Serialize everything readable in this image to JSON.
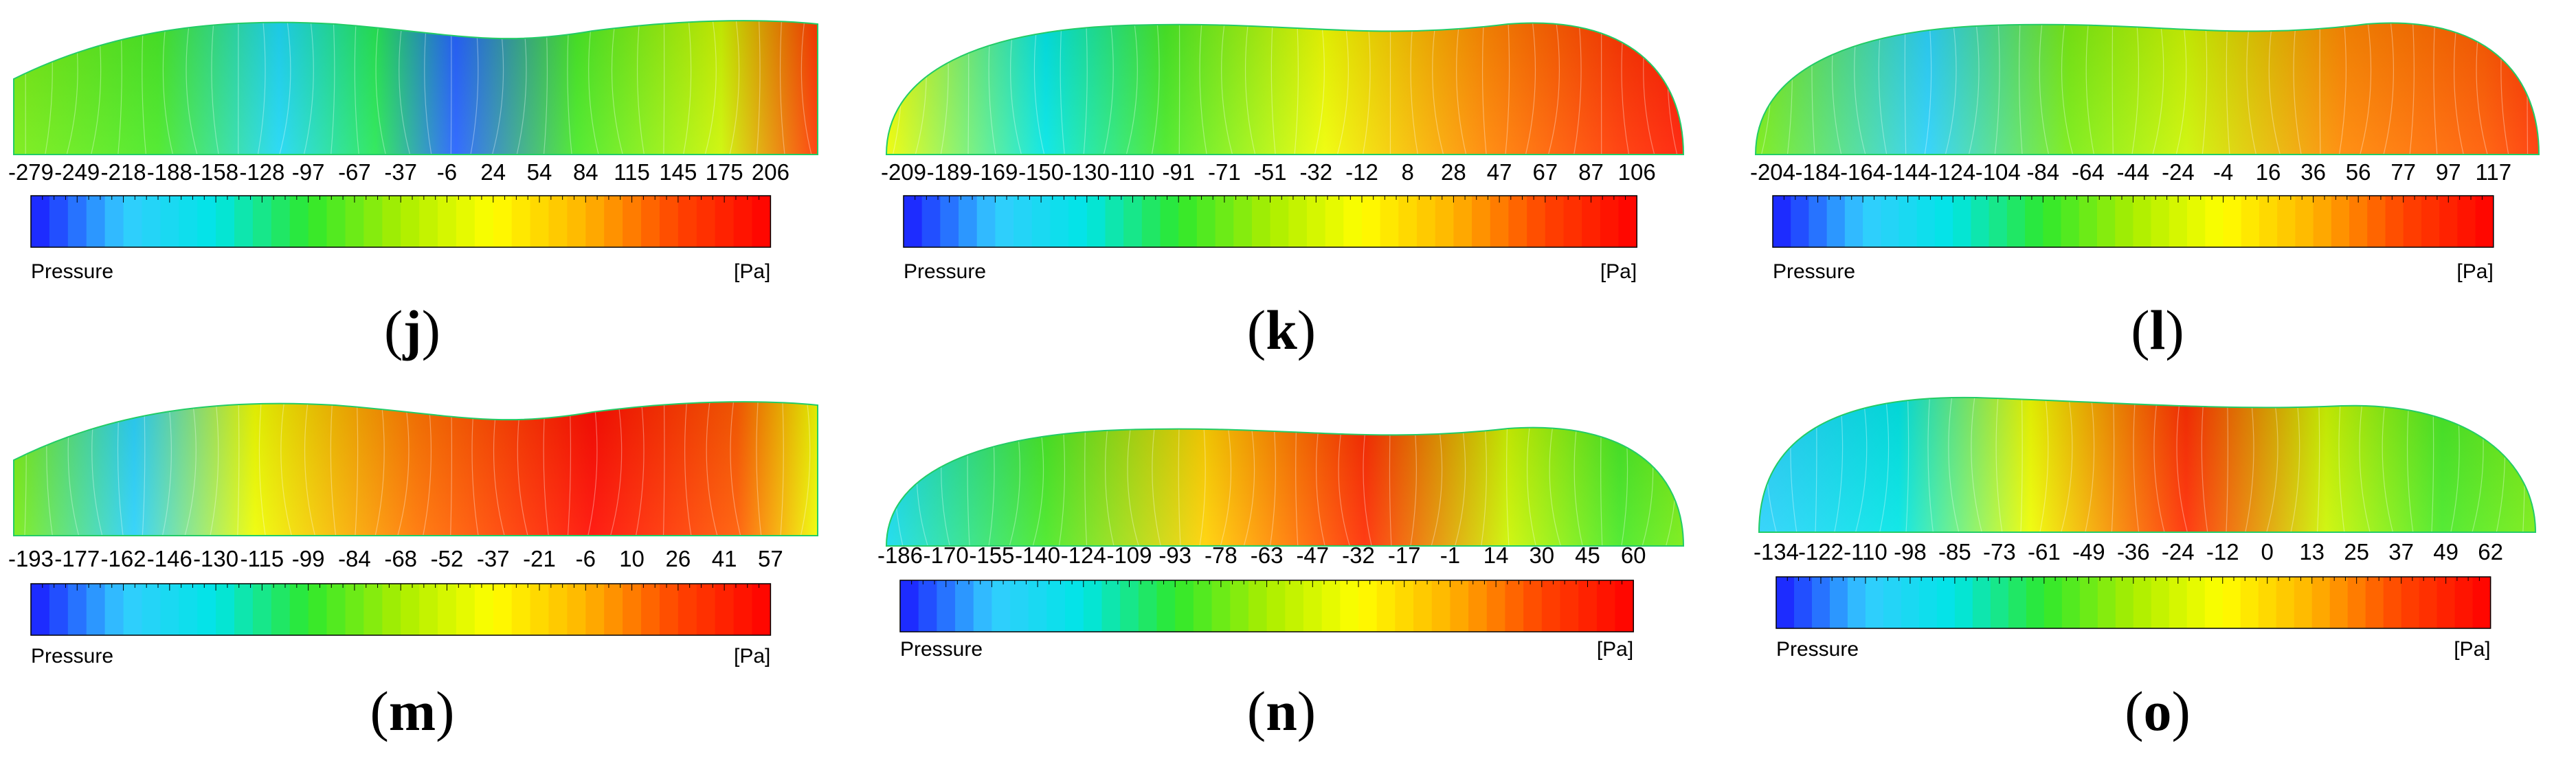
{
  "palette": {
    "stops": [
      "#1a1aff",
      "#33ccff",
      "#00e5e5",
      "#2ee82e",
      "#aaee00",
      "#ffff00",
      "#ffb300",
      "#ff4400",
      "#ff0000"
    ]
  },
  "panels": [
    {
      "label": "j",
      "scalar": "Pressure",
      "unit": "[Pa]",
      "ticks": [
        "-279",
        "-249",
        "-218",
        "-188",
        "-158",
        "-128",
        "-97",
        "-67",
        "-37",
        "-6",
        "24",
        "54",
        "84",
        "115",
        "145",
        "175",
        "206"
      ],
      "field": [
        [
          0.0,
          0.45
        ],
        [
          0.18,
          0.4
        ],
        [
          0.33,
          0.18
        ],
        [
          0.45,
          0.35
        ],
        [
          0.55,
          0.05
        ],
        [
          0.7,
          0.4
        ],
        [
          0.88,
          0.55
        ],
        [
          1.0,
          0.9
        ]
      ]
    },
    {
      "label": "k",
      "scalar": "Pressure",
      "unit": "[Pa]",
      "ticks": [
        "-209",
        "-189",
        "-169",
        "-150",
        "-130",
        "-110",
        "-91",
        "-71",
        "-51",
        "-32",
        "-12",
        "8",
        "28",
        "47",
        "67",
        "87",
        "106"
      ],
      "field": [
        [
          0.0,
          0.6
        ],
        [
          0.2,
          0.25
        ],
        [
          0.35,
          0.4
        ],
        [
          0.55,
          0.6
        ],
        [
          0.75,
          0.8
        ],
        [
          0.92,
          0.9
        ],
        [
          1.0,
          0.95
        ]
      ]
    },
    {
      "label": "l",
      "scalar": "Pressure",
      "unit": "[Pa]",
      "ticks": [
        "-204",
        "-184",
        "-164",
        "-144",
        "-124",
        "-104",
        "-84",
        "-64",
        "-44",
        "-24",
        "-4",
        "16",
        "36",
        "56",
        "77",
        "97",
        "117"
      ],
      "field": [
        [
          0.0,
          0.45
        ],
        [
          0.22,
          0.15
        ],
        [
          0.4,
          0.45
        ],
        [
          0.55,
          0.55
        ],
        [
          0.75,
          0.8
        ],
        [
          0.93,
          0.85
        ],
        [
          1.0,
          0.9
        ]
      ]
    },
    {
      "label": "m",
      "scalar": "Pressure",
      "unit": "[Pa]",
      "ticks": [
        "-193",
        "-177",
        "-162",
        "-146",
        "-130",
        "-115",
        "-99",
        "-84",
        "-68",
        "-52",
        "-37",
        "-21",
        "-6",
        "10",
        "26",
        "41",
        "57"
      ],
      "field": [
        [
          0.0,
          0.45
        ],
        [
          0.15,
          0.15
        ],
        [
          0.3,
          0.6
        ],
        [
          0.5,
          0.82
        ],
        [
          0.72,
          0.98
        ],
        [
          0.9,
          0.85
        ],
        [
          1.0,
          0.6
        ]
      ]
    },
    {
      "label": "n",
      "scalar": "Pressure",
      "unit": "[Pa]",
      "ticks": [
        "-186",
        "-170",
        "-155",
        "-140",
        "-124",
        "-109",
        "-93",
        "-78",
        "-63",
        "-47",
        "-32",
        "-17",
        "-1",
        "14",
        "30",
        "45",
        "60"
      ],
      "field": [
        [
          0.0,
          0.2
        ],
        [
          0.2,
          0.4
        ],
        [
          0.4,
          0.7
        ],
        [
          0.6,
          0.92
        ],
        [
          0.78,
          0.55
        ],
        [
          0.92,
          0.4
        ],
        [
          1.0,
          0.45
        ]
      ]
    },
    {
      "label": "o",
      "scalar": "Pressure",
      "unit": "[Pa]",
      "ticks": [
        "-134",
        "-122",
        "-110",
        "-98",
        "-85",
        "-73",
        "-61",
        "-49",
        "-36",
        "-24",
        "-12",
        "0",
        "13",
        "25",
        "37",
        "49",
        "62"
      ],
      "field": [
        [
          0.0,
          0.15
        ],
        [
          0.18,
          0.25
        ],
        [
          0.35,
          0.6
        ],
        [
          0.55,
          0.92
        ],
        [
          0.73,
          0.55
        ],
        [
          0.88,
          0.4
        ],
        [
          1.0,
          0.45
        ]
      ]
    }
  ]
}
